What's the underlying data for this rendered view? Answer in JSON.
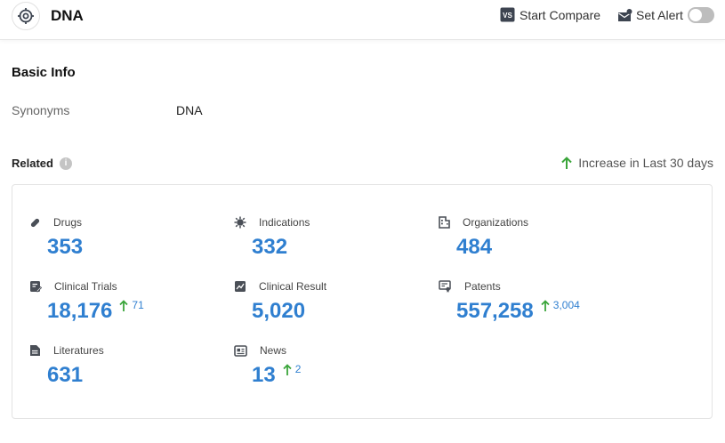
{
  "header": {
    "title": "DNA",
    "start_compare_label": "Start Compare",
    "set_alert_label": "Set Alert",
    "set_alert_enabled": false
  },
  "basic_info": {
    "heading": "Basic Info",
    "synonyms_label": "Synonyms",
    "synonyms_value": "DNA"
  },
  "related": {
    "heading": "Related",
    "increase_note": "Increase in Last 30 days",
    "stats": {
      "drugs": {
        "label": "Drugs",
        "value": "353"
      },
      "indications": {
        "label": "Indications",
        "value": "332"
      },
      "organizations": {
        "label": "Organizations",
        "value": "484"
      },
      "clinical_trials": {
        "label": "Clinical Trials",
        "value": "18,176",
        "delta": "71"
      },
      "clinical_result": {
        "label": "Clinical Result",
        "value": "5,020"
      },
      "patents": {
        "label": "Patents",
        "value": "557,258",
        "delta": "3,004"
      },
      "literatures": {
        "label": "Literatures",
        "value": "631"
      },
      "news": {
        "label": "News",
        "value": "13",
        "delta": "2"
      }
    }
  },
  "colors": {
    "accent_blue": "#2f7fd0",
    "increase_green": "#3aa53a",
    "icon_gray": "#4a4f57"
  }
}
